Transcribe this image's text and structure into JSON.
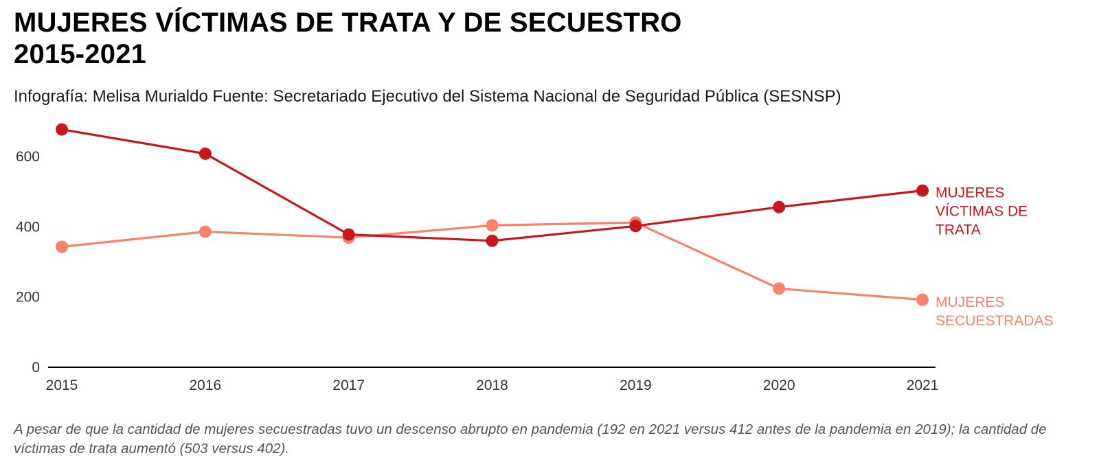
{
  "header": {
    "title_line1": "MUJERES VÍCTIMAS DE TRATA Y DE SECUESTRO",
    "title_line2": "2015-2021",
    "subtitle": "Infografía: Melisa Murialdo Fuente: Secretariado Ejecutivo del Sistema Nacional de Seguridad Pública (SESNSP)"
  },
  "note": "A pesar de que la cantidad de mujeres secuestradas tuvo un descenso abrupto en pandemia (192 en 2021 versus 412 antes de la pandemia en 2019); la cantidad de víctimas de trata aumentó (503 versus 402).",
  "chart_data": {
    "type": "line",
    "x": [
      "2015",
      "2016",
      "2017",
      "2018",
      "2019",
      "2020",
      "2021"
    ],
    "ylim": [
      0,
      700
    ],
    "yticks": [
      0,
      200,
      400,
      600
    ],
    "grid": false,
    "xlabel": "",
    "ylabel": "",
    "series": [
      {
        "name_lines": [
          "MUJERES",
          "SECUESTRADAS"
        ],
        "color": "#f9826b",
        "values": [
          343,
          386,
          369,
          404,
          412,
          224,
          192
        ]
      },
      {
        "name_lines": [
          "MUJERES",
          "VÍCTIMAS DE",
          "TRATA"
        ],
        "color": "#c8161d",
        "values": [
          677,
          608,
          378,
          360,
          402,
          456,
          503
        ]
      }
    ]
  }
}
